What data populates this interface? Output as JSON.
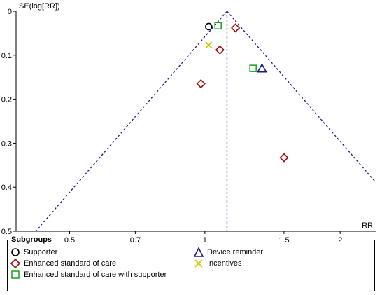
{
  "chart_data": {
    "type": "scatter",
    "subtype": "funnel plot",
    "ylabel": "SE(log[RR])",
    "xlabel": "RR",
    "x_scale": "log",
    "x_ticks": [
      0.5,
      0.7,
      1,
      1.5,
      2
    ],
    "x_tick_labels": [
      "0.5",
      "0.7",
      "1",
      "1.5",
      "2"
    ],
    "y_ticks": [
      0,
      0.1,
      0.2,
      0.3,
      0.4,
      0.5
    ],
    "y_tick_labels": [
      "0",
      "0.1",
      "0.2",
      "0.3",
      "0.4",
      "0.5"
    ],
    "y_reversed": true,
    "ylim": [
      0,
      0.5
    ],
    "xlim": [
      0.38,
      2.4
    ],
    "pooled_rr": 1.12,
    "series": [
      {
        "name": "Supporter",
        "marker": "circle",
        "color": "#000000",
        "points": [
          {
            "x": 1.02,
            "y": 0.035
          }
        ]
      },
      {
        "name": "Enhanced standard of care",
        "marker": "diamond",
        "color": "#a01010",
        "points": [
          {
            "x": 1.17,
            "y": 0.038
          },
          {
            "x": 1.08,
            "y": 0.088
          },
          {
            "x": 0.98,
            "y": 0.165
          },
          {
            "x": 1.5,
            "y": 0.333
          }
        ]
      },
      {
        "name": "Enhanced standard of care with supporter",
        "marker": "square",
        "color": "#22aa22",
        "points": [
          {
            "x": 1.07,
            "y": 0.033
          },
          {
            "x": 1.28,
            "y": 0.13
          }
        ]
      },
      {
        "name": "Device reminder",
        "marker": "triangle",
        "color": "#1a1a8c",
        "points": [
          {
            "x": 1.34,
            "y": 0.13
          }
        ]
      },
      {
        "name": "Incentives",
        "marker": "x",
        "color": "#cccc00",
        "points": [
          {
            "x": 1.02,
            "y": 0.077
          }
        ]
      }
    ],
    "legend": {
      "title": "Subgroups",
      "placement": "bottom",
      "items": [
        "Supporter",
        "Enhanced standard of care",
        "Enhanced standard of care with supporter",
        "Device reminder",
        "Incentives"
      ]
    },
    "line_color": "#1a1a8c"
  }
}
